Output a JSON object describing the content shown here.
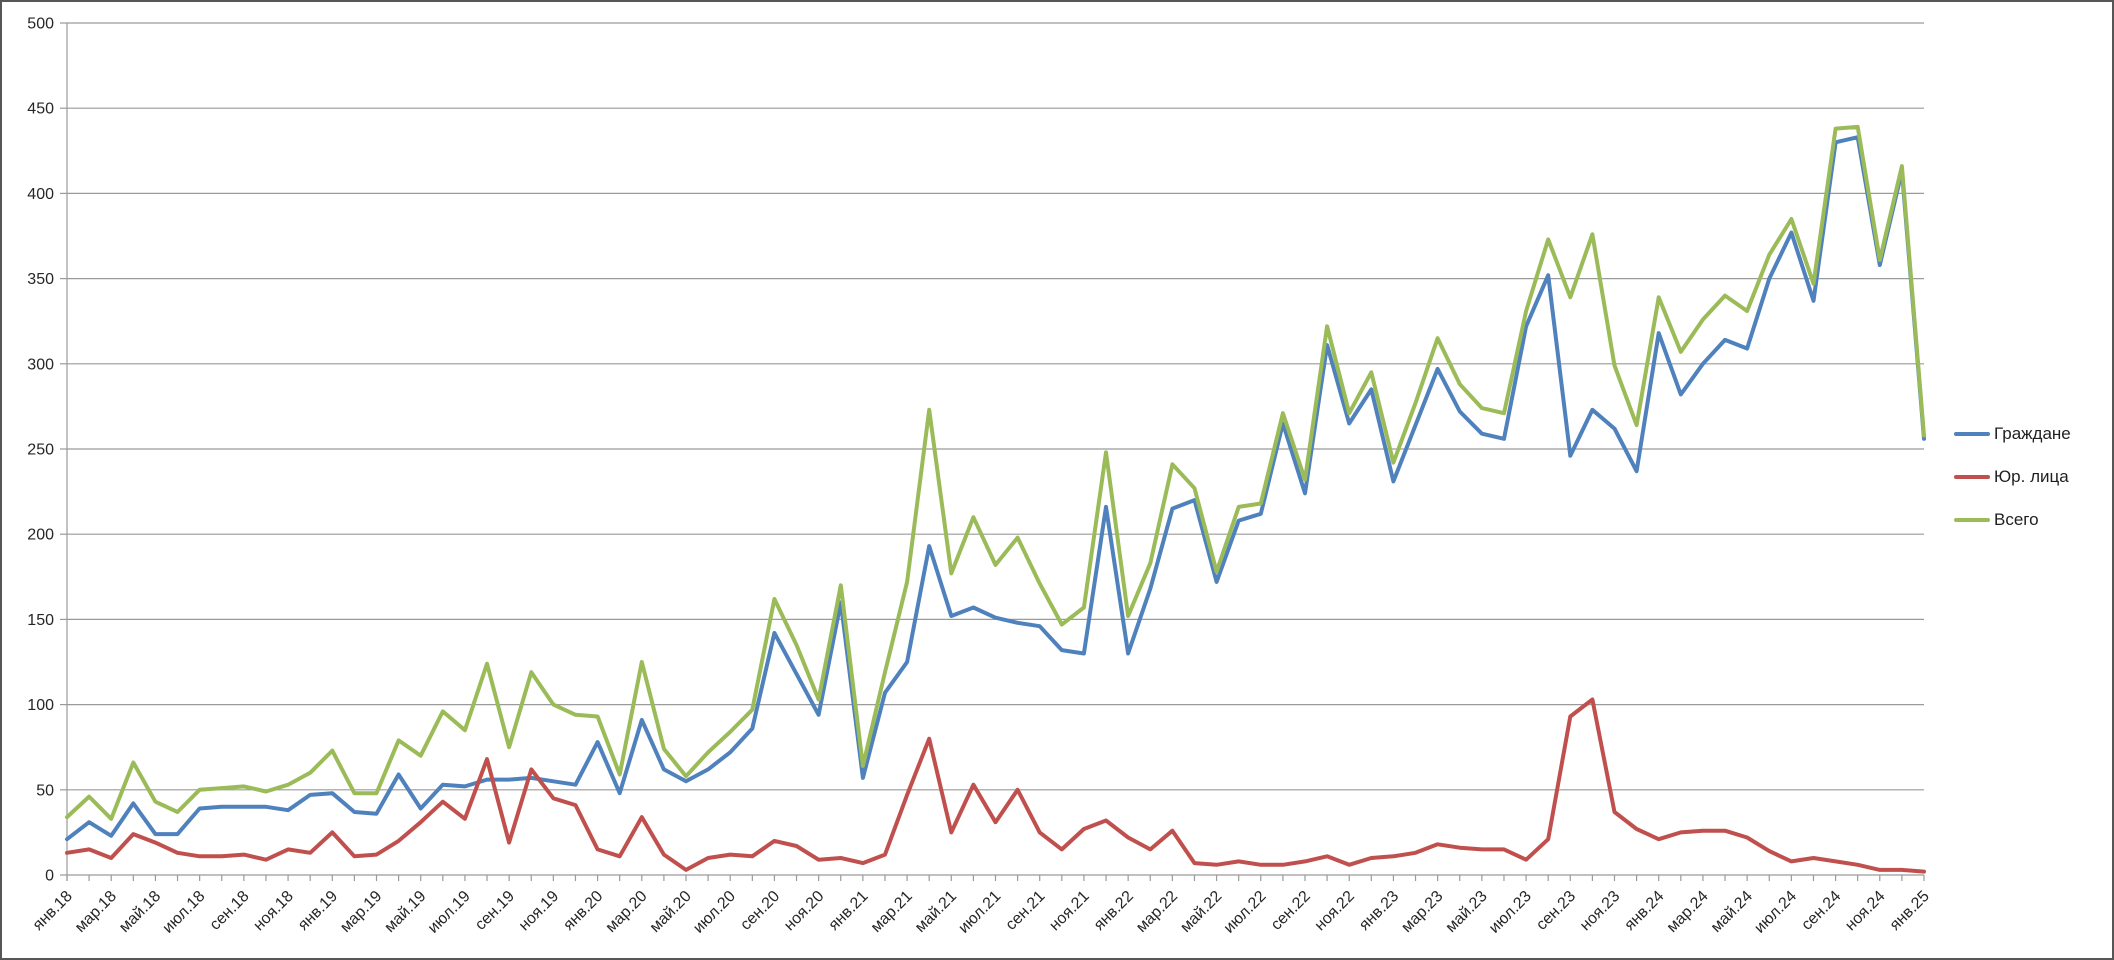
{
  "window": {
    "background": "#ffffff",
    "border_color": "#565656"
  },
  "chart_data": {
    "type": "line",
    "title": "",
    "xlabel": "",
    "ylabel": "",
    "ylim": [
      0,
      500
    ],
    "ytick_step": 50,
    "y_tick_labels": [
      "0",
      "50",
      "100",
      "150",
      "200",
      "250",
      "300",
      "350",
      "400",
      "450",
      "500"
    ],
    "grid": true,
    "legend_position": "right",
    "x_label_every": 2,
    "x_labels_visible": [
      "янв.18",
      "мар.18",
      "май.18",
      "июл.18",
      "сен.18",
      "ноя.18",
      "янв.19",
      "мар.19",
      "май.19",
      "июл.19",
      "сен.19",
      "ноя.19",
      "янв.20",
      "мар.20",
      "май.20",
      "июл.20",
      "сен.20",
      "ноя.20",
      "янв.21",
      "мар.21",
      "май.21",
      "июл.21",
      "сен.21",
      "ноя.21",
      "янв.22",
      "мар.22",
      "май.22",
      "июл.22",
      "сен.22",
      "ноя.22",
      "янв.23",
      "мар.23",
      "май.23",
      "июл.23",
      "сен.23",
      "ноя.23",
      "янв.24",
      "мар.24",
      "май.24",
      "июл.24",
      "сен.24",
      "ноя.24",
      "янв.25"
    ],
    "months": [
      "янв.18",
      "фев.18",
      "мар.18",
      "апр.18",
      "май.18",
      "июн.18",
      "июл.18",
      "авг.18",
      "сен.18",
      "окт.18",
      "ноя.18",
      "дек.18",
      "янв.19",
      "фев.19",
      "мар.19",
      "апр.19",
      "май.19",
      "июн.19",
      "июл.19",
      "авг.19",
      "сен.19",
      "окт.19",
      "ноя.19",
      "дек.19",
      "янв.20",
      "фев.20",
      "мар.20",
      "апр.20",
      "май.20",
      "июн.20",
      "июл.20",
      "авг.20",
      "сен.20",
      "окт.20",
      "ноя.20",
      "дек.20",
      "янв.21",
      "фев.21",
      "мар.21",
      "апр.21",
      "май.21",
      "июн.21",
      "июл.21",
      "авг.21",
      "сен.21",
      "окт.21",
      "ноя.21",
      "дек.21",
      "янв.22",
      "фев.22",
      "мар.22",
      "апр.22",
      "май.22",
      "июн.22",
      "июл.22",
      "авг.22",
      "сен.22",
      "окт.22",
      "ноя.22",
      "дек.22",
      "янв.23",
      "фев.23",
      "мар.23",
      "апр.23",
      "май.23",
      "июн.23",
      "июл.23",
      "авг.23",
      "сен.23",
      "окт.23",
      "ноя.23",
      "дек.23",
      "янв.24",
      "фев.24",
      "мар.24",
      "апр.24",
      "май.24",
      "июн.24",
      "июл.24",
      "авг.24",
      "сен.24",
      "окт.24",
      "ноя.24",
      "дек.24",
      "янв.25"
    ],
    "series": [
      {
        "name": "Граждане",
        "color": "#4F81BD",
        "values": [
          21,
          31,
          23,
          42,
          24,
          24,
          39,
          40,
          40,
          40,
          38,
          47,
          48,
          37,
          36,
          59,
          39,
          53,
          52,
          56,
          56,
          57,
          55,
          53,
          78,
          48,
          91,
          62,
          55,
          62,
          72,
          86,
          142,
          118,
          94,
          160,
          57,
          107,
          125,
          193,
          152,
          157,
          151,
          148,
          146,
          132,
          130,
          216,
          130,
          168,
          215,
          220,
          172,
          208,
          212,
          265,
          224,
          311,
          265,
          285,
          231,
          264,
          297,
          272,
          259,
          256,
          322,
          352,
          246,
          273,
          262,
          237,
          318,
          282,
          300,
          314,
          309,
          350,
          377,
          337,
          430,
          433,
          358,
          413,
          256
        ]
      },
      {
        "name": "Юр. лица",
        "color": "#C0504D",
        "values": [
          13,
          15,
          10,
          24,
          19,
          13,
          11,
          11,
          12,
          9,
          15,
          13,
          25,
          11,
          12,
          20,
          31,
          43,
          33,
          68,
          19,
          62,
          45,
          41,
          15,
          11,
          34,
          12,
          3,
          10,
          12,
          11,
          20,
          17,
          9,
          10,
          7,
          12,
          47,
          80,
          25,
          53,
          31,
          50,
          25,
          15,
          27,
          32,
          22,
          15,
          26,
          7,
          6,
          8,
          6,
          6,
          8,
          11,
          6,
          10,
          11,
          13,
          18,
          16,
          15,
          15,
          9,
          21,
          93,
          103,
          37,
          27,
          21,
          25,
          26,
          26,
          22,
          14,
          8,
          10,
          8,
          6,
          3,
          3,
          2
        ]
      },
      {
        "name": "Всего",
        "color": "#9BBB59",
        "values": [
          34,
          46,
          33,
          66,
          43,
          37,
          50,
          51,
          52,
          49,
          53,
          60,
          73,
          48,
          48,
          79,
          70,
          96,
          85,
          124,
          75,
          119,
          100,
          94,
          93,
          59,
          125,
          74,
          58,
          72,
          84,
          97,
          162,
          135,
          103,
          170,
          64,
          119,
          172,
          273,
          177,
          210,
          182,
          198,
          171,
          147,
          157,
          248,
          152,
          183,
          241,
          227,
          178,
          216,
          218,
          271,
          232,
          322,
          271,
          295,
          242,
          277,
          315,
          288,
          274,
          271,
          331,
          373,
          339,
          376,
          299,
          264,
          339,
          307,
          326,
          340,
          331,
          364,
          385,
          347,
          438,
          439,
          361,
          416,
          258
        ]
      }
    ],
    "axis_color": "#9a9a9a",
    "grid_color": "#9a9a9a",
    "tick_label_color": "#262626"
  },
  "legend": {
    "items": [
      {
        "label": "Граждане",
        "color": "#4F81BD"
      },
      {
        "label": "Юр. лица",
        "color": "#C0504D"
      },
      {
        "label": "Всего",
        "color": "#9BBB59"
      }
    ]
  }
}
